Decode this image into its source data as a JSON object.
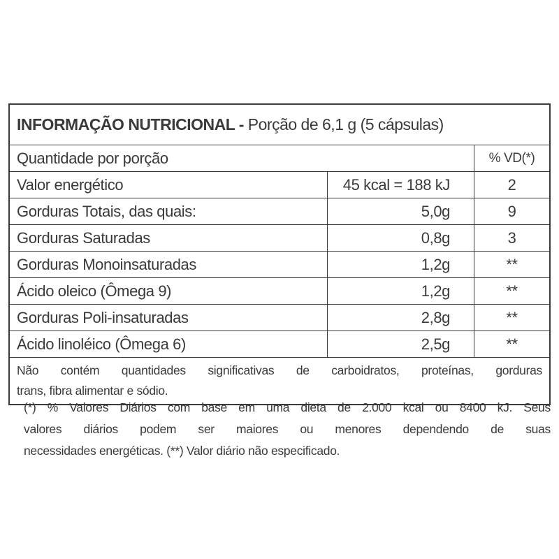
{
  "title": {
    "bold": "INFORMAÇÃO NUTRICIONAL -",
    "rest": " Porção de 6,1 g (5 cápsulas)"
  },
  "header": {
    "quantity_label": "Quantidade por porção",
    "vd_label": "% VD(*)"
  },
  "rows": [
    {
      "name": "Valor energético",
      "amount": "45 kcal = 188 kJ",
      "vd": "2"
    },
    {
      "name": "Gorduras Totais, das quais:",
      "amount": "5,0g",
      "vd": "9"
    },
    {
      "name": "Gorduras Saturadas",
      "amount": "0,8g",
      "vd": "3"
    },
    {
      "name": "Gorduras Monoinsaturadas",
      "amount": "1,2g",
      "vd": "**"
    },
    {
      "name": "Ácido oleico (Ômega 9)",
      "amount": "1,2g",
      "vd": "**"
    },
    {
      "name": "Gorduras Poli-insaturadas",
      "amount": "2,8g",
      "vd": "**"
    },
    {
      "name": "Ácido linoléico (Ômega 6)",
      "amount": "2,5g",
      "vd": "**"
    }
  ],
  "note_lines": [
    "Não contém quantidades significativas de carboidratos, proteínas, gorduras",
    "trans, fibra alimentar e sódio."
  ],
  "footnote_lines": [
    "(*) % Valores Diários com base em uma dieta de 2.000 kcal ou 8400 kJ. Seus",
    "valores diários podem ser maiores ou menores dependendo de suas",
    "necessidades energéticas. (**) Valor diário não especificado."
  ]
}
